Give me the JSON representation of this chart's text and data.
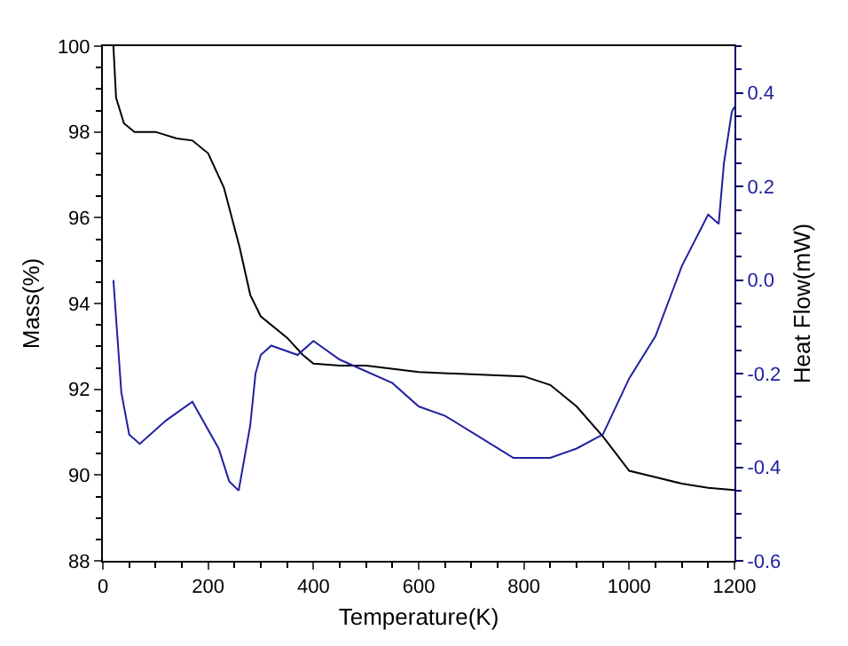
{
  "chart_data": {
    "type": "line",
    "xlabel": "Temperature(K)",
    "ylabel": "Mass(%)",
    "y2label": "Heat Flow(mW)",
    "xlim": [
      0,
      1200
    ],
    "xticks": [
      0,
      200,
      400,
      600,
      800,
      1000,
      1200
    ],
    "ylim": [
      88,
      100
    ],
    "yticks": [
      88,
      90,
      92,
      94,
      96,
      98,
      100
    ],
    "y2lim": [
      -0.6,
      0.5
    ],
    "y2ticks": [
      -0.6,
      -0.4,
      -0.2,
      {
        "value": 0,
        "label": "0.0"
      },
      0.2,
      0.4
    ],
    "grid": false,
    "marker": "none",
    "line_style": "solid",
    "series": [
      {
        "color": "#000000",
        "x": [
          20,
          25,
          40,
          60,
          100,
          140,
          170,
          200,
          230,
          260,
          280,
          300,
          350,
          380,
          400,
          450,
          500,
          600,
          700,
          800,
          850,
          900,
          950,
          1000,
          1050,
          1100,
          1150,
          1200
        ],
        "values": [
          100,
          98.8,
          98.2,
          98.0,
          98.0,
          97.85,
          97.8,
          97.5,
          96.7,
          95.3,
          94.2,
          93.7,
          93.2,
          92.8,
          92.6,
          92.55,
          92.55,
          92.4,
          92.35,
          92.3,
          92.1,
          91.6,
          90.9,
          90.1,
          89.95,
          89.8,
          89.7,
          89.65
        ]
      },
      {
        "color": "#2020a0",
        "axis": "y2",
        "x": [
          20,
          35,
          50,
          70,
          120,
          170,
          220,
          240,
          258,
          280,
          290,
          300,
          320,
          370,
          400,
          450,
          550,
          600,
          650,
          780,
          850,
          900,
          950,
          1000,
          1050,
          1100,
          1150,
          1170,
          1180,
          1195,
          1200
        ],
        "values": [
          0.0,
          -0.24,
          -0.33,
          -0.35,
          -0.3,
          -0.26,
          -0.36,
          -0.43,
          -0.45,
          -0.31,
          -0.2,
          -0.16,
          -0.14,
          -0.16,
          -0.13,
          -0.17,
          -0.22,
          -0.27,
          -0.29,
          -0.38,
          -0.38,
          -0.36,
          -0.33,
          -0.21,
          -0.12,
          0.03,
          0.14,
          0.12,
          0.25,
          0.36,
          0.37
        ]
      }
    ]
  }
}
